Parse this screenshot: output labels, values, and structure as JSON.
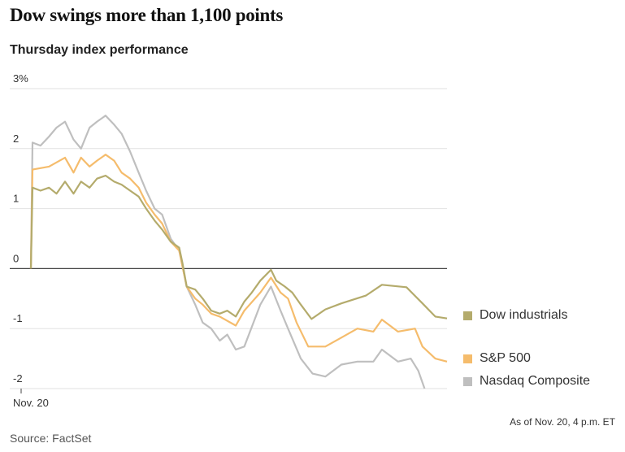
{
  "chart_data": {
    "type": "line",
    "title": "Dow swings more than 1,100 points",
    "subtitle": "Thursday index performance",
    "xlabel": "",
    "ylabel": "",
    "x_unit": "minutes after 9:30 a.m. open",
    "xlim": [
      0,
      390
    ],
    "ylim": [
      -2,
      3
    ],
    "yticks": [
      3,
      2,
      1,
      0,
      -1,
      -2
    ],
    "ytick_labels": [
      "3%",
      "2",
      "1",
      "0",
      "-1",
      "-2"
    ],
    "xtick_labels": [
      "Nov. 20"
    ],
    "grid": true,
    "legend_placement": "right",
    "note": "As of Nov. 20, 4 p.m. ET",
    "source": "Source: FactSet",
    "series": [
      {
        "name": "Dow industrials",
        "color": "#b4ab6c",
        "points": [
          [
            0,
            0
          ],
          [
            1.5,
            1.35
          ],
          [
            9,
            1.3
          ],
          [
            17,
            1.35
          ],
          [
            24,
            1.25
          ],
          [
            32,
            1.45
          ],
          [
            40,
            1.25
          ],
          [
            47,
            1.45
          ],
          [
            55,
            1.35
          ],
          [
            62,
            1.5
          ],
          [
            70,
            1.55
          ],
          [
            78,
            1.45
          ],
          [
            85,
            1.4
          ],
          [
            93,
            1.3
          ],
          [
            101,
            1.2
          ],
          [
            108,
            1.0
          ],
          [
            116,
            0.8
          ],
          [
            123,
            0.65
          ],
          [
            131,
            0.45
          ],
          [
            139,
            0.35
          ],
          [
            142,
            0.1
          ],
          [
            146,
            -0.3
          ],
          [
            154,
            -0.35
          ],
          [
            161,
            -0.5
          ],
          [
            169,
            -0.7
          ],
          [
            177,
            -0.75
          ],
          [
            184,
            -0.7
          ],
          [
            192,
            -0.8
          ],
          [
            200,
            -0.55
          ],
          [
            207,
            -0.4
          ],
          [
            215,
            -0.2
          ],
          [
            225,
            -0.02
          ],
          [
            230,
            -0.2
          ],
          [
            238,
            -0.3
          ],
          [
            245,
            -0.4
          ],
          [
            253,
            -0.6
          ],
          [
            263,
            -0.84
          ],
          [
            276,
            -0.68
          ],
          [
            291,
            -0.58
          ],
          [
            314,
            -0.45
          ],
          [
            329,
            -0.27
          ],
          [
            352,
            -0.31
          ],
          [
            367,
            -0.58
          ],
          [
            379,
            -0.8
          ],
          [
            390,
            -0.83
          ]
        ]
      },
      {
        "name": "S&P 500",
        "color": "#f5bc6c",
        "points": [
          [
            0,
            0
          ],
          [
            1.5,
            1.65
          ],
          [
            17,
            1.7
          ],
          [
            32,
            1.85
          ],
          [
            40,
            1.6
          ],
          [
            47,
            1.85
          ],
          [
            55,
            1.7
          ],
          [
            62,
            1.8
          ],
          [
            70,
            1.9
          ],
          [
            78,
            1.8
          ],
          [
            85,
            1.6
          ],
          [
            93,
            1.5
          ],
          [
            101,
            1.35
          ],
          [
            108,
            1.1
          ],
          [
            116,
            0.9
          ],
          [
            123,
            0.75
          ],
          [
            131,
            0.45
          ],
          [
            139,
            0.3
          ],
          [
            146,
            -0.3
          ],
          [
            154,
            -0.5
          ],
          [
            161,
            -0.6
          ],
          [
            169,
            -0.75
          ],
          [
            177,
            -0.8
          ],
          [
            192,
            -0.95
          ],
          [
            200,
            -0.7
          ],
          [
            215,
            -0.4
          ],
          [
            225,
            -0.15
          ],
          [
            234,
            -0.4
          ],
          [
            241,
            -0.5
          ],
          [
            249,
            -0.9
          ],
          [
            260,
            -1.3
          ],
          [
            276,
            -1.3
          ],
          [
            291,
            -1.15
          ],
          [
            306,
            -1.0
          ],
          [
            321,
            -1.05
          ],
          [
            329,
            -0.85
          ],
          [
            344,
            -1.05
          ],
          [
            360,
            -1.0
          ],
          [
            367,
            -1.3
          ],
          [
            379,
            -1.5
          ],
          [
            390,
            -1.55
          ]
        ]
      },
      {
        "name": "Nasdaq Composite",
        "color": "#bfbfbf",
        "points": [
          [
            0,
            0
          ],
          [
            1.5,
            2.1
          ],
          [
            9,
            2.05
          ],
          [
            17,
            2.2
          ],
          [
            24,
            2.35
          ],
          [
            32,
            2.45
          ],
          [
            40,
            2.15
          ],
          [
            47,
            2.0
          ],
          [
            55,
            2.35
          ],
          [
            62,
            2.45
          ],
          [
            70,
            2.55
          ],
          [
            78,
            2.4
          ],
          [
            85,
            2.25
          ],
          [
            93,
            1.95
          ],
          [
            101,
            1.6
          ],
          [
            108,
            1.3
          ],
          [
            116,
            1.0
          ],
          [
            123,
            0.9
          ],
          [
            131,
            0.5
          ],
          [
            139,
            0.3
          ],
          [
            146,
            -0.3
          ],
          [
            154,
            -0.6
          ],
          [
            161,
            -0.9
          ],
          [
            169,
            -1.0
          ],
          [
            177,
            -1.2
          ],
          [
            184,
            -1.1
          ],
          [
            192,
            -1.35
          ],
          [
            200,
            -1.3
          ],
          [
            215,
            -0.6
          ],
          [
            225,
            -0.3
          ],
          [
            234,
            -0.7
          ],
          [
            241,
            -1.0
          ],
          [
            253,
            -1.5
          ],
          [
            264,
            -1.75
          ],
          [
            276,
            -1.8
          ],
          [
            291,
            -1.6
          ],
          [
            306,
            -1.55
          ],
          [
            321,
            -1.55
          ],
          [
            329,
            -1.35
          ],
          [
            344,
            -1.55
          ],
          [
            356,
            -1.5
          ],
          [
            363,
            -1.7
          ],
          [
            369,
            -2.0
          ]
        ]
      }
    ]
  }
}
